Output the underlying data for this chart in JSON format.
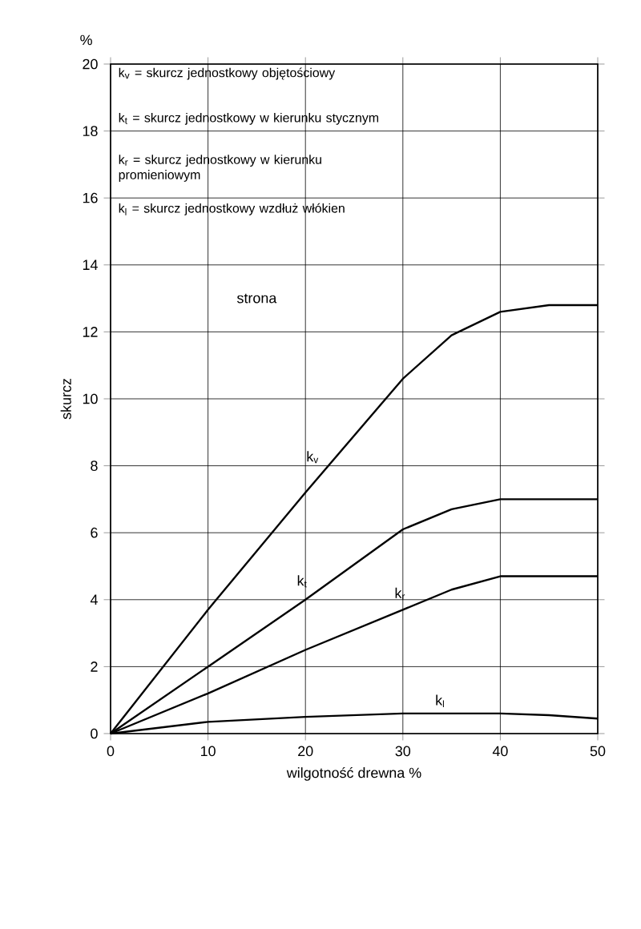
{
  "chart_data": {
    "type": "line",
    "xlabel": "wilgotność drewna %",
    "ylabel": "skurcz",
    "annotations": [
      "%",
      "k$_{v}$ = skurcz jednostkowy objętościowy",
      "k$_{t}$ = skurcz jednostkowy w kierunku stycznym",
      "k$_{r}$ = skurcz jednostkowy w kierunku promieniowym",
      "k$_{l}$ = skurcz jednostkowy wzdłuż włókien",
      "strona"
    ],
    "x": [
      0,
      10,
      20,
      30,
      35,
      40,
      45,
      50
    ],
    "series": [
      {
        "name": "k$_{v}$",
        "color": "#000000",
        "values": [
          0,
          3.7,
          7.2,
          10.6,
          11.9,
          12.6,
          12.8,
          12.8
        ]
      },
      {
        "name": "k$_{t}$",
        "color": "#000000",
        "values": [
          0,
          2,
          4,
          6.1,
          6.7,
          7,
          7,
          7
        ]
      },
      {
        "name": "k$_{r}$",
        "color": "#000000",
        "values": [
          0,
          1.2,
          2.5,
          3.7,
          4.3,
          4.7,
          4.7,
          4.7
        ]
      },
      {
        "name": "k$_{l}$",
        "color": "#000000",
        "values": [
          0,
          0.35,
          0.5,
          0.6,
          0.6,
          0.6,
          0.55,
          0.45
        ]
      }
    ],
    "xlim": [
      0,
      50
    ],
    "ylim": [
      0,
      20
    ],
    "xticks": [
      0,
      10,
      20,
      30,
      40,
      50
    ],
    "yticks": [
      0,
      2,
      4,
      6,
      8,
      10,
      12,
      14,
      16,
      18,
      20
    ],
    "grid": true,
    "legend": false,
    "marker": "none",
    "line_style": "solid"
  }
}
